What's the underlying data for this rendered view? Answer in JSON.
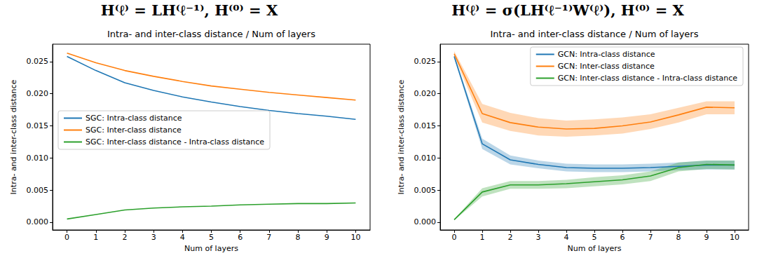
{
  "chart_data": [
    {
      "type": "line",
      "title": "H⁽ℓ⁾ = LH⁽ℓ⁻¹⁾, H⁽⁰⁾ = X",
      "subtitle": "Intra- and inter-class distance / Num of layers",
      "x_label": "Num of layers",
      "y_label": "Intra- and inter-class distance",
      "x": [
        0,
        1,
        2,
        3,
        4,
        5,
        6,
        7,
        8,
        9,
        10
      ],
      "series": [
        {
          "name": "SGC: Intra-class distance",
          "color": "#1f77b4",
          "values": [
            0.0258,
            0.0236,
            0.0217,
            0.0205,
            0.0195,
            0.0187,
            0.018,
            0.0174,
            0.0169,
            0.0165,
            0.016
          ]
        },
        {
          "name": "SGC: Inter-class distance",
          "color": "#ff7f0e",
          "values": [
            0.0263,
            0.0248,
            0.0236,
            0.0227,
            0.0219,
            0.0212,
            0.0207,
            0.0202,
            0.0198,
            0.0194,
            0.019
          ]
        },
        {
          "name": "SGC: Inter-class distance - Intra-class distance",
          "color": "#2ca02c",
          "values": [
            0.0005,
            0.0012,
            0.0019,
            0.0022,
            0.0024,
            0.0025,
            0.0027,
            0.0028,
            0.0029,
            0.0029,
            0.003
          ]
        }
      ],
      "xlim": [
        -0.5,
        10.5
      ],
      "ylim": [
        -0.0012,
        0.0277
      ],
      "xticks": [
        0,
        1,
        2,
        3,
        4,
        5,
        6,
        7,
        8,
        9,
        10
      ],
      "yticks": [
        {
          "value": 0,
          "label": "0.000"
        },
        {
          "value": 0.005,
          "label": "0.005"
        },
        {
          "value": 0.01,
          "label": "0.010"
        },
        {
          "value": 0.015,
          "label": "0.015"
        },
        {
          "value": 0.02,
          "label": "0.020"
        },
        {
          "value": 0.025,
          "label": "0.025"
        }
      ],
      "grid": false,
      "legend": "center left"
    },
    {
      "type": "line",
      "title": "H⁽ℓ⁾ = σ(LH⁽ℓ⁻¹⁾W⁽ℓ⁾), H⁽⁰⁾ = X",
      "subtitle": "Intra- and inter-class distance / Num of layers",
      "x_label": "Num of layers",
      "y_label": "Intra- and inter-class distance",
      "x": [
        0,
        1,
        2,
        3,
        4,
        5,
        6,
        7,
        8,
        9,
        10
      ],
      "series": [
        {
          "name": "GCN: Intra-class distance",
          "color": "#1f77b4",
          "values": [
            0.0258,
            0.0122,
            0.0097,
            0.009,
            0.0085,
            0.0084,
            0.0084,
            0.0085,
            0.0087,
            0.0089,
            0.0089
          ],
          "lower": [
            0.0255,
            0.0114,
            0.009,
            0.0084,
            0.0079,
            0.0078,
            0.0078,
            0.0079,
            0.0081,
            0.0082,
            0.0082
          ],
          "upper": [
            0.0261,
            0.013,
            0.0104,
            0.0096,
            0.0091,
            0.009,
            0.009,
            0.0091,
            0.0093,
            0.0096,
            0.0096
          ]
        },
        {
          "name": "GCN: Inter-class distance",
          "color": "#ff7f0e",
          "values": [
            0.0262,
            0.0169,
            0.0155,
            0.0148,
            0.0145,
            0.0146,
            0.015,
            0.0156,
            0.0167,
            0.0179,
            0.0178
          ],
          "lower": [
            0.0258,
            0.0155,
            0.0142,
            0.0135,
            0.0133,
            0.0135,
            0.0138,
            0.0145,
            0.0155,
            0.0168,
            0.0168
          ],
          "upper": [
            0.0266,
            0.0184,
            0.017,
            0.0162,
            0.0158,
            0.016,
            0.0163,
            0.0168,
            0.0178,
            0.0188,
            0.0188
          ]
        },
        {
          "name": "GCN: Inter-class distance - Intra-class distance",
          "color": "#2ca02c",
          "values": [
            0.0004,
            0.0047,
            0.0058,
            0.0058,
            0.006,
            0.0063,
            0.0066,
            0.0072,
            0.0085,
            0.009,
            0.0089
          ],
          "lower": [
            0.0003,
            0.004,
            0.0052,
            0.0052,
            0.0053,
            0.0056,
            0.0059,
            0.0064,
            0.0079,
            0.0083,
            0.0082
          ],
          "upper": [
            0.0005,
            0.0053,
            0.0064,
            0.0064,
            0.0066,
            0.007,
            0.0073,
            0.0079,
            0.0093,
            0.0096,
            0.0096
          ]
        }
      ],
      "xlim": [
        -0.5,
        10.5
      ],
      "ylim": [
        -0.0012,
        0.0277
      ],
      "xticks": [
        0,
        1,
        2,
        3,
        4,
        5,
        6,
        7,
        8,
        9,
        10
      ],
      "yticks": [
        {
          "value": 0,
          "label": "0.000"
        },
        {
          "value": 0.005,
          "label": "0.005"
        },
        {
          "value": 0.01,
          "label": "0.010"
        },
        {
          "value": 0.015,
          "label": "0.015"
        },
        {
          "value": 0.02,
          "label": "0.020"
        },
        {
          "value": 0.025,
          "label": "0.025"
        }
      ],
      "grid": false,
      "legend": "upper right"
    }
  ]
}
